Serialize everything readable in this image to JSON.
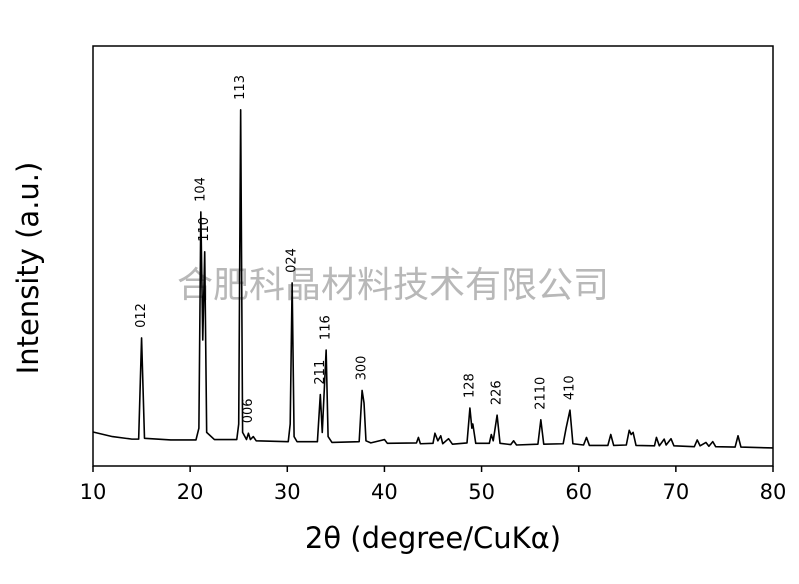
{
  "chart_data": {
    "type": "line",
    "xlabel": "2θ (degree/CuKα)",
    "ylabel": "Intensity (a.u.)",
    "watermark": "合肥科晶材料技术有限公司",
    "color": "#000000",
    "xlim": [
      10,
      80
    ],
    "xticks": [
      10,
      20,
      30,
      40,
      50,
      60,
      70,
      80
    ],
    "ylim": [
      0,
      100
    ],
    "x": [
      10,
      12,
      14,
      14.7,
      15.0,
      15.3,
      18,
      20.6,
      20.9,
      21.1,
      21.3,
      21.5,
      21.7,
      22.5,
      24.8,
      25.0,
      25.2,
      25.4,
      25.8,
      26.0,
      26.2,
      26.5,
      26.8,
      30.1,
      30.3,
      30.5,
      30.7,
      31.0,
      33.1,
      33.4,
      33.6,
      34.0,
      34.2,
      34.6,
      37.4,
      37.7,
      37.9,
      38.1,
      38.6,
      40.0,
      40.3,
      43.3,
      43.5,
      43.7,
      45.0,
      45.2,
      45.5,
      45.8,
      46.0,
      46.6,
      47,
      48.5,
      48.8,
      49.0,
      49.1,
      49.4,
      50.8,
      51.0,
      51.2,
      51.6,
      51.9,
      53,
      53.3,
      53.6,
      55.8,
      56.1,
      56.4,
      58.4,
      58.7,
      59.1,
      59.4,
      60.5,
      60.8,
      61.1,
      63.0,
      63.3,
      63.6,
      64.9,
      65.2,
      65.4,
      65.6,
      65.9,
      67.8,
      68.0,
      68.3,
      68.8,
      69.0,
      69.5,
      69.8,
      71.9,
      72.2,
      72.5,
      73.1,
      73.4,
      73.8,
      74.1,
      76.1,
      76.4,
      76.7,
      80
    ],
    "values": [
      8.1,
      7.0,
      6.4,
      6.4,
      30.5,
      6.6,
      6.2,
      6.2,
      9,
      60.5,
      30,
      51,
      8,
      6.3,
      6.3,
      10,
      84.8,
      8,
      6.3,
      7.8,
      6.3,
      7,
      6.0,
      5.8,
      10,
      43.6,
      7,
      5.8,
      5.8,
      17,
      8,
      27.6,
      7,
      5.6,
      5.8,
      18,
      15,
      6,
      5.5,
      6.3,
      5.4,
      5.5,
      6.8,
      5.3,
      5.4,
      7.8,
      6.0,
      7.2,
      5.3,
      6.5,
      5.2,
      5.5,
      13.8,
      9,
      10,
      5.4,
      5.4,
      7.5,
      6,
      12.1,
      5.4,
      5.1,
      6,
      5.0,
      5.2,
      11,
      5.2,
      5.3,
      9,
      13.3,
      5.3,
      5.0,
      6.8,
      4.9,
      4.9,
      7.5,
      4.9,
      5.0,
      8.5,
      7.5,
      8.0,
      4.9,
      4.8,
      6.8,
      4.8,
      6.4,
      5.0,
      6.5,
      4.8,
      4.6,
      6.2,
      4.8,
      5.6,
      4.7,
      5.8,
      4.6,
      4.5,
      7.2,
      4.5,
      4.3
    ],
    "annotations": [
      {
        "text": "012",
        "x": 15.0
      },
      {
        "text": "104",
        "x": 21.1
      },
      {
        "text": "110",
        "x": 21.5
      },
      {
        "text": "113",
        "x": 25.2
      },
      {
        "text": "006",
        "x": 26.0
      },
      {
        "text": "024",
        "x": 30.5
      },
      {
        "text": "211",
        "x": 33.4
      },
      {
        "text": "116",
        "x": 34.0
      },
      {
        "text": "300",
        "x": 37.7
      },
      {
        "text": "128",
        "x": 48.8
      },
      {
        "text": "226",
        "x": 51.6
      },
      {
        "text": "2110",
        "x": 56.1
      },
      {
        "text": "410",
        "x": 59.1
      }
    ]
  }
}
